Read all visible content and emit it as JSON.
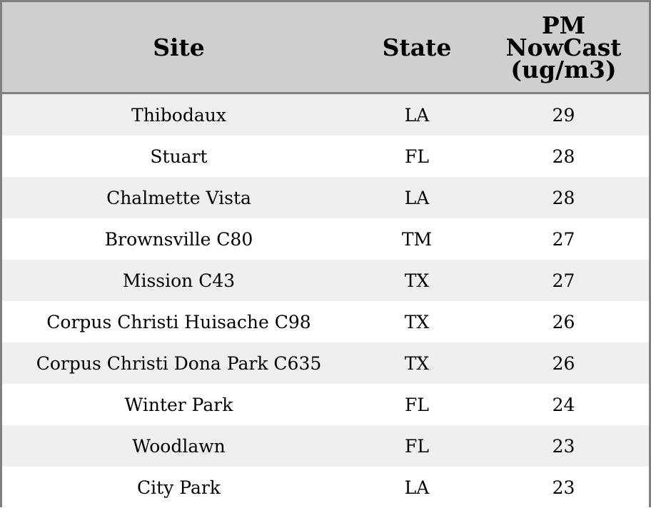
{
  "chart_data": {
    "type": "table",
    "columns": [
      "Site",
      "State",
      "PM NowCast (ug/m3)"
    ],
    "column_header_lines": [
      [
        "Site"
      ],
      [
        "State"
      ],
      [
        "PM",
        "NowCast",
        "(ug/m3)"
      ]
    ],
    "rows": [
      {
        "site": "Thibodaux",
        "state": "LA",
        "pm": "29"
      },
      {
        "site": "Stuart",
        "state": "FL",
        "pm": "28"
      },
      {
        "site": "Chalmette Vista",
        "state": "LA",
        "pm": "28"
      },
      {
        "site": "Brownsville C80",
        "state": "TM",
        "pm": "27"
      },
      {
        "site": "Mission C43",
        "state": "TX",
        "pm": "27"
      },
      {
        "site": "Corpus Christi Huisache C98",
        "state": "TX",
        "pm": "26"
      },
      {
        "site": "Corpus Christi Dona Park C635",
        "state": "TX",
        "pm": "26"
      },
      {
        "site": "Winter Park",
        "state": "FL",
        "pm": "24"
      },
      {
        "site": "Woodlawn",
        "state": "FL",
        "pm": "23"
      },
      {
        "site": "City Park",
        "state": "LA",
        "pm": "23"
      }
    ],
    "colors": {
      "header_bg": "#cfcfcf",
      "row_stripe": "#efefef",
      "row_plain": "#ffffff",
      "border": "#808080"
    }
  }
}
